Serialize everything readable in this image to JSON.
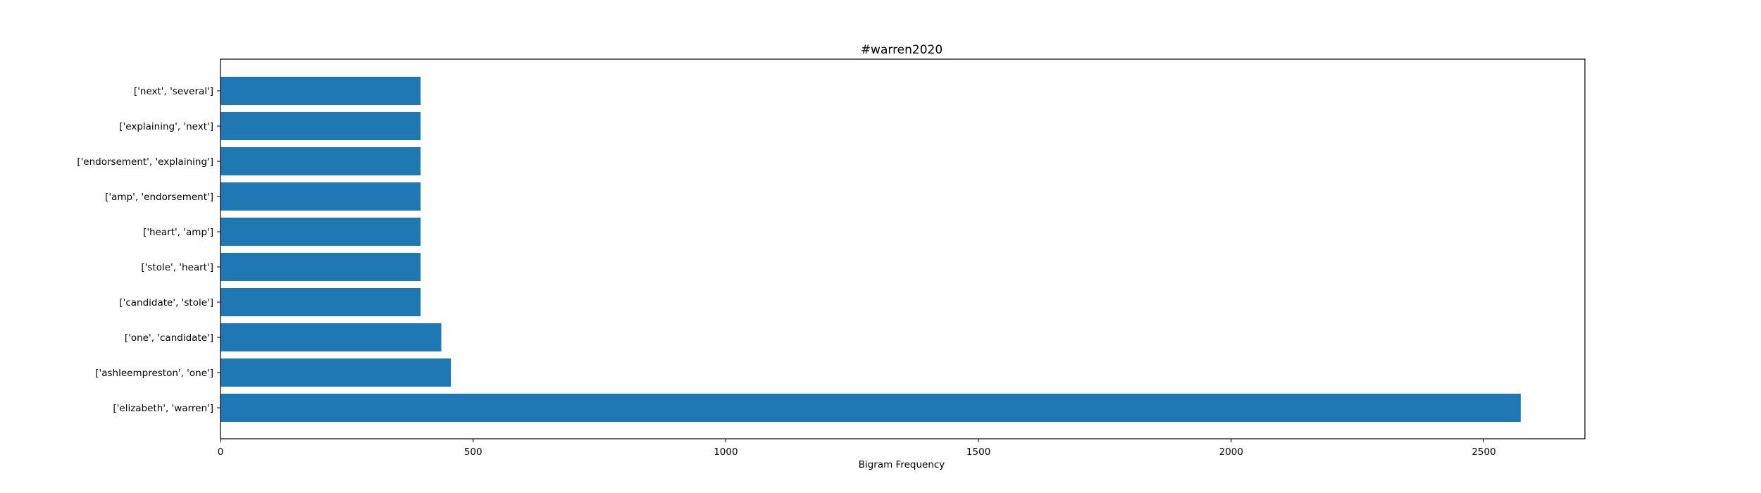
{
  "chart_data": {
    "type": "bar",
    "orientation": "horizontal",
    "title": "#warren2020",
    "xlabel": "Bigram Frequency",
    "ylabel": "",
    "categories": [
      "['elizabeth', 'warren']",
      "['ashleempreston', 'one']",
      "['one', 'candidate']",
      "['candidate', 'stole']",
      "['stole', 'heart']",
      "['heart', 'amp']",
      "['amp', 'endorsement']",
      "['endorsement', 'explaining']",
      "['explaining', 'next']",
      "['next', 'several']"
    ],
    "values": [
      2573,
      456,
      437,
      396,
      396,
      396,
      396,
      396,
      396,
      396
    ],
    "xlim": [
      0,
      2700
    ],
    "xticks": [
      0,
      500,
      1000,
      1500,
      2000,
      2500
    ],
    "bar_color": "#1f77b4",
    "grid": false,
    "legend": "none"
  }
}
